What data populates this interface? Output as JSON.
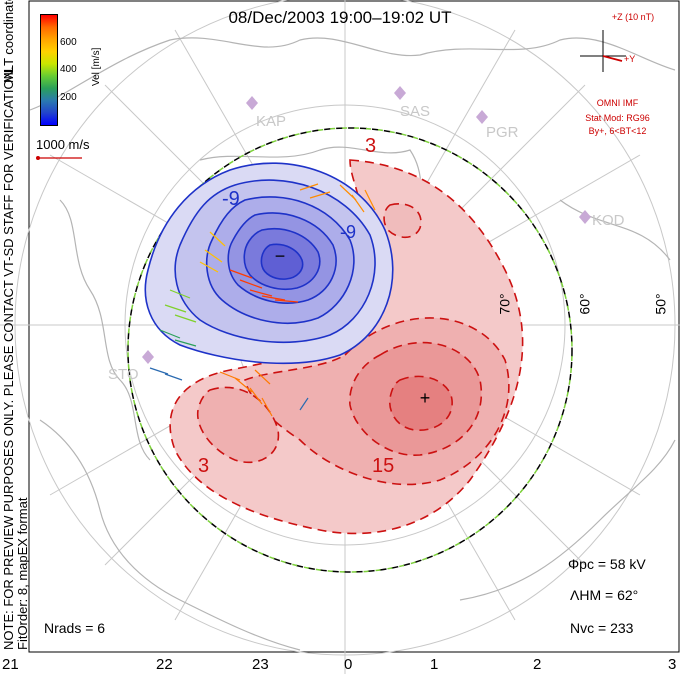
{
  "title": "08/Dec/2003 19:00–19:02 UT",
  "side_note": [
    "NOTE: FOR PREVIEW PURPOSES ONLY. PLEASE CONTACT VT-SD STAFF FOR VERIFICATION.",
    "FitOrder: 8, mapEX format"
  ],
  "coords_label": "MLT coordinates",
  "colorbar": {
    "label": "Vel [m/s]",
    "ticks": [
      "600",
      "400",
      "200"
    ],
    "colors": [
      "#ff0000",
      "#ff6a00",
      "#ffa500",
      "#ffd200",
      "#c8e600",
      "#66cc33",
      "#2aa05a",
      "#2a7ab0",
      "#2244cc",
      "#0000ff"
    ]
  },
  "scale_vector": "1000 m/s",
  "imf": {
    "z_label": "+Z (10 nT)",
    "y_label": "+Y",
    "source": "OMNI IMF",
    "stat_model": "Stat Mod: RG96",
    "condition": "By+, 6<BT<12"
  },
  "stations": [
    "KAP",
    "SAS",
    "PGR",
    "KOD",
    "STO"
  ],
  "contour_labels": {
    "neg": "-9",
    "neg2": "-9",
    "pos3a": "3",
    "pos3b": "3",
    "pos15": "15"
  },
  "cell_marks": {
    "min": "−",
    "max": "+"
  },
  "lat_labels": [
    "70°",
    "60°",
    "50°"
  ],
  "stats": {
    "phi": "Φpc = 58 kV",
    "lambda": "ΛHM = 62°",
    "nvc": "Nvc = 233",
    "nrads": "Nrads = 6"
  },
  "mlt_labels": [
    "21",
    "22",
    "23",
    "0",
    "1",
    "2",
    "3"
  ],
  "colors": {
    "neg_fill": "#8a8ae6",
    "neg_line": "#1e32c8",
    "pos_fill": "#ec8a8a",
    "pos_line": "#cc1111",
    "grid": "#c8c8c8",
    "hmb_a": "#000000",
    "hmb_b": "#7dd13b"
  }
}
